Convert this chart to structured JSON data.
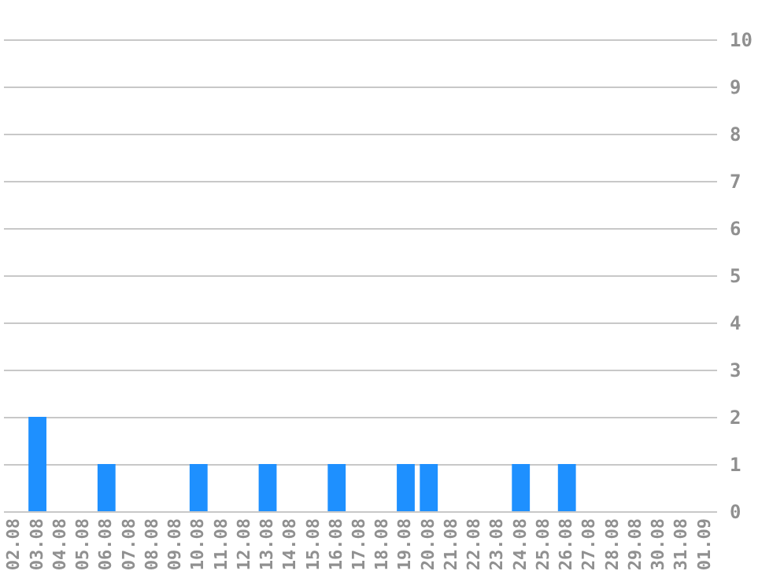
{
  "chart_data": {
    "type": "bar",
    "categories": [
      "02.08",
      "03.08",
      "04.08",
      "05.08",
      "06.08",
      "07.08",
      "08.08",
      "09.08",
      "10.08",
      "11.08",
      "12.08",
      "13.08",
      "14.08",
      "15.08",
      "16.08",
      "17.08",
      "18.08",
      "19.08",
      "20.08",
      "21.08",
      "22.08",
      "23.08",
      "24.08",
      "25.08",
      "26.08",
      "27.08",
      "28.08",
      "29.08",
      "30.08",
      "31.08",
      "01.09"
    ],
    "values": [
      0,
      2,
      0,
      0,
      1,
      0,
      0,
      0,
      1,
      0,
      0,
      1,
      0,
      0,
      1,
      0,
      0,
      1,
      1,
      0,
      0,
      0,
      1,
      0,
      1,
      0,
      0,
      0,
      0,
      0,
      0
    ],
    "color": "#1e90ff",
    "ylim": [
      0,
      10
    ],
    "yticks": [
      0,
      1,
      2,
      3,
      4,
      5,
      6,
      7,
      8,
      9,
      10
    ],
    "grid": true
  }
}
